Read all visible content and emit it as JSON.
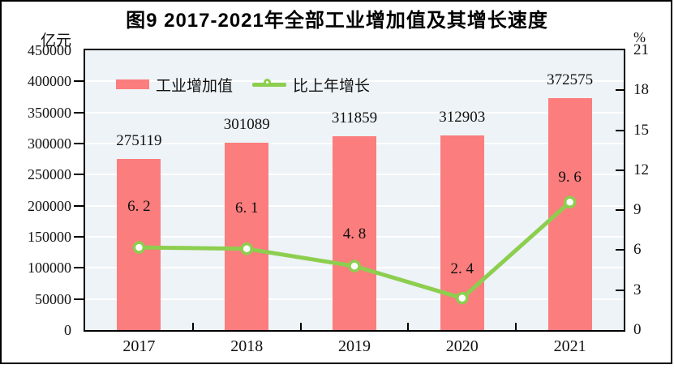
{
  "figure": {
    "title": "图9  2017-2021年全部工业增加值及其增长速度",
    "left_axis_unit": "亿元",
    "right_axis_unit": "%"
  },
  "legend": {
    "items": [
      {
        "label": "工业增加值",
        "marker": "bar-swatch",
        "color": "#fb7d7d"
      },
      {
        "label": "比上年增长",
        "marker": "line-circle",
        "color": "#8dce4f"
      }
    ]
  },
  "colors": {
    "bar": "#fb7d7d",
    "line": "#8dce4f",
    "marker_fill": "#ffffff",
    "plot_background": "#edf3f7",
    "gridline": "#ffffff",
    "axis": "#000000"
  },
  "chart_data": {
    "type": "bar",
    "subtype": "bar+line-dual-axis",
    "title": "图9  2017-2021年全部工业增加值及其增长速度",
    "categories": [
      "2017",
      "2018",
      "2019",
      "2020",
      "2021"
    ],
    "series": [
      {
        "name": "工业增加值",
        "type": "bar",
        "axis": "left",
        "unit": "亿元",
        "values": [
          275119,
          301089,
          311859,
          312903,
          372575
        ],
        "labels": [
          "275119",
          "301089",
          "311859",
          "312903",
          "372575"
        ],
        "color": "#fb7d7d"
      },
      {
        "name": "比上年增长",
        "type": "line",
        "axis": "right",
        "unit": "%",
        "values": [
          6.2,
          6.1,
          4.8,
          2.4,
          9.6
        ],
        "labels": [
          "6. 2",
          "6. 1",
          "4. 8",
          "2. 4",
          "9. 6"
        ],
        "color": "#8dce4f"
      }
    ],
    "left_axis": {
      "label": "亿元",
      "min": 0,
      "max": 450000,
      "step": 50000,
      "ticks": [
        "450000",
        "400000",
        "350000",
        "300000",
        "250000",
        "200000",
        "150000",
        "100000",
        "50000",
        "0"
      ]
    },
    "right_axis": {
      "label": "%",
      "min": 0,
      "max": 21,
      "step": 3,
      "ticks": [
        "21",
        "18",
        "15",
        "12",
        "9",
        "6",
        "3",
        "0"
      ]
    },
    "grid": "horizontal",
    "legend_position": "top-left-inside"
  }
}
